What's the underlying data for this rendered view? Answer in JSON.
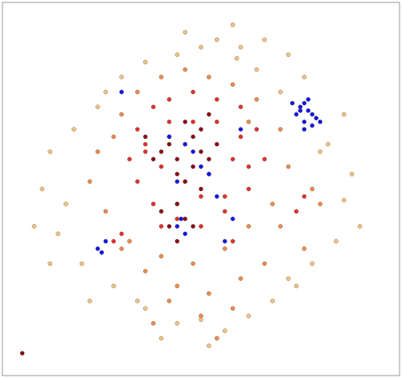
{
  "chart_data": {
    "type": "scatter",
    "xlim": [
      0,
      100
    ],
    "ylim": [
      0,
      100
    ],
    "series": [
      {
        "color": "#f6c27c",
        "x": [
          54,
          59,
          50,
          44,
          36,
          30,
          24,
          18,
          12,
          10,
          8,
          14,
          20,
          12,
          16,
          28,
          36,
          44,
          50,
          52,
          56,
          62,
          68,
          72,
          78,
          84,
          86,
          88,
          82,
          76,
          72,
          66,
          60,
          64,
          70,
          80,
          86,
          22,
          26,
          40,
          34,
          46,
          58,
          74,
          90
        ],
        "values": [
          90,
          85,
          88,
          86,
          84,
          80,
          72,
          66,
          60,
          50,
          40,
          38,
          30,
          30,
          46,
          24,
          18,
          14,
          15,
          8,
          12,
          16,
          20,
          26,
          30,
          36,
          47,
          54,
          62,
          80,
          86,
          90,
          88,
          82,
          76,
          60,
          70,
          20,
          76,
          10,
          20,
          92,
          94,
          24,
          40
        ]
      },
      {
        "color": "#f08a48",
        "x": [
          30,
          34,
          40,
          46,
          52,
          58,
          64,
          70,
          72,
          68,
          62,
          56,
          48,
          40,
          32,
          26,
          22,
          24,
          28,
          36,
          44,
          52,
          60,
          66,
          76,
          80,
          78,
          58,
          50,
          42,
          54,
          38,
          70,
          30,
          62
        ],
        "values": [
          70,
          76,
          80,
          82,
          80,
          78,
          74,
          66,
          56,
          46,
          40,
          34,
          30,
          32,
          36,
          44,
          52,
          60,
          64,
          28,
          24,
          22,
          26,
          30,
          34,
          46,
          50,
          18,
          16,
          20,
          10,
          14,
          40,
          34,
          68
        ]
      },
      {
        "color": "#e2302a",
        "x": [
          34,
          38,
          42,
          48,
          54,
          60,
          64,
          66,
          62,
          56,
          50,
          44,
          38,
          34,
          32,
          36,
          40,
          46,
          52,
          58,
          62,
          60,
          54,
          48,
          42,
          36,
          44,
          50,
          56,
          40,
          28,
          76,
          74,
          30,
          58
        ],
        "values": [
          66,
          72,
          74,
          76,
          74,
          72,
          66,
          58,
          50,
          44,
          40,
          42,
          46,
          52,
          58,
          62,
          56,
          52,
          54,
          58,
          56,
          64,
          68,
          68,
          68,
          60,
          46,
          48,
          48,
          40,
          36,
          48,
          44,
          38,
          36
        ]
      },
      {
        "color": "#8c0a12",
        "x": [
          40,
          42,
          44,
          46,
          48,
          50,
          52,
          44,
          46,
          42,
          48,
          38,
          50,
          46,
          44,
          40,
          42,
          48,
          54,
          36,
          44,
          46,
          5,
          52,
          50
        ],
        "values": [
          60,
          62,
          58,
          62,
          64,
          60,
          58,
          54,
          52,
          64,
          56,
          58,
          66,
          68,
          46,
          44,
          40,
          40,
          62,
          64,
          36,
          42,
          6,
          70,
          50
        ]
      },
      {
        "color": "#1414e6",
        "x": [
          74,
          75,
          76,
          77,
          78,
          79,
          76,
          75,
          77,
          78,
          73,
          80,
          76,
          46,
          48,
          50,
          44,
          42,
          52,
          54,
          58,
          30,
          44,
          46,
          45,
          24,
          25,
          26,
          56,
          60
        ],
        "values": [
          70,
          72,
          73,
          71,
          70,
          69,
          68,
          71,
          74,
          67,
          73,
          68,
          66,
          62,
          60,
          56,
          52,
          64,
          54,
          48,
          42,
          76,
          40,
          38,
          42,
          34,
          33,
          36,
          36,
          66
        ]
      }
    ]
  }
}
